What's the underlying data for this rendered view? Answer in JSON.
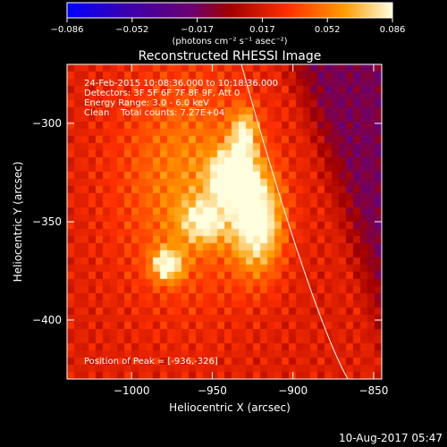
{
  "chart_data": {
    "type": "heatmap",
    "title": "Reconstructed RHESSI Image",
    "xlabel": "Heliocentric X (arcsec)",
    "ylabel": "Heliocentric Y (arcsec)",
    "xlim": [
      -1040,
      -845
    ],
    "ylim": [
      -430,
      -270
    ],
    "x_ticks": [
      -1000,
      -950,
      -900,
      -850
    ],
    "y_ticks": [
      -300,
      -350,
      -400
    ],
    "colorbar": {
      "label": "(photons cm⁻² s⁻¹ asec⁻²)",
      "range": [
        -0.086,
        0.086
      ],
      "ticks": [
        "-0.086",
        "-0.052",
        "-0.017",
        "0.017",
        "0.052",
        "0.086"
      ]
    },
    "info_lines": [
      "24-Feb-2015 10:08:36.000 to 10:18:36.000",
      "Detectors: 3F 5F 6F 7F 8F 9F, Att 0",
      "Energy Range: 3.0 - 6.0 keV",
      "Clean    Total counts: 7.27E+04"
    ],
    "peak_label": "Position of Peak = [-936,-326]",
    "peak": [
      -936,
      -326
    ],
    "footer": "10-Aug-2017 05:47",
    "sources": [
      {
        "x": -937,
        "y": -327,
        "sx": 9,
        "sy": 9,
        "amp": 0.086
      },
      {
        "x": -922,
        "y": -350,
        "sx": 11,
        "sy": 18,
        "amp": 0.07
      },
      {
        "x": -930,
        "y": -305,
        "sx": 6,
        "sy": 9,
        "amp": 0.05
      },
      {
        "x": -955,
        "y": -350,
        "sx": 10,
        "sy": 8,
        "amp": 0.045
      },
      {
        "x": -978,
        "y": -372,
        "sx": 7,
        "sy": 6,
        "amp": 0.06
      },
      {
        "x": -965,
        "y": -330,
        "sx": 30,
        "sy": 40,
        "amp": 0.035
      }
    ],
    "limb_curve": [
      [
        -932,
        -270
      ],
      [
        -905,
        -350
      ],
      [
        -880,
        -410
      ],
      [
        -866,
        -430
      ]
    ]
  }
}
